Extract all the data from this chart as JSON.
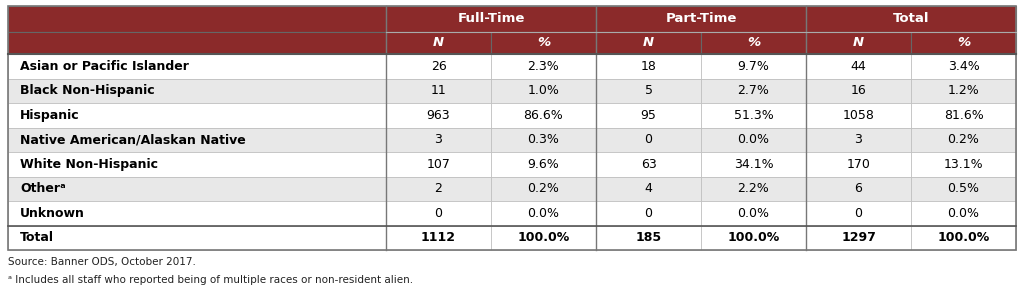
{
  "header_color": "#8B2A2A",
  "header_text_color": "#FFFFFF",
  "row_colors": [
    "#FFFFFF",
    "#E8E8E8"
  ],
  "border_color": "#888888",
  "text_color": "#000000",
  "col_groups": [
    "Full-Time",
    "Part-Time",
    "Total"
  ],
  "col_headers": [
    "N",
    "%",
    "N",
    "%",
    "N",
    "%"
  ],
  "row_labels": [
    "Asian or Pacific Islander",
    "Black Non-Hispanic",
    "Hispanic",
    "Native American/Alaskan Native",
    "White Non-Hispanic",
    "Otherᵃ",
    "Unknown",
    "Total"
  ],
  "row_labels_bold": [
    true,
    true,
    true,
    true,
    true,
    true,
    true,
    true
  ],
  "data": [
    [
      "26",
      "2.3%",
      "18",
      "9.7%",
      "44",
      "3.4%"
    ],
    [
      "11",
      "1.0%",
      "5",
      "2.7%",
      "16",
      "1.2%"
    ],
    [
      "963",
      "86.6%",
      "95",
      "51.3%",
      "1058",
      "81.6%"
    ],
    [
      "3",
      "0.3%",
      "0",
      "0.0%",
      "3",
      "0.2%"
    ],
    [
      "107",
      "9.6%",
      "63",
      "34.1%",
      "170",
      "13.1%"
    ],
    [
      "2",
      "0.2%",
      "4",
      "2.2%",
      "6",
      "0.5%"
    ],
    [
      "0",
      "0.0%",
      "0",
      "0.0%",
      "0",
      "0.0%"
    ],
    [
      "1112",
      "100.0%",
      "185",
      "100.0%",
      "1297",
      "100.0%"
    ]
  ],
  "data_bold": [
    false,
    false,
    false,
    false,
    false,
    false,
    false,
    true
  ],
  "footnote1": "Source: Banner ODS, October 2017.",
  "footnote2": "ᵃ Includes all staff who reported being of multiple races or non-resident alien.",
  "figsize": [
    10.24,
    3.06
  ],
  "dpi": 100
}
